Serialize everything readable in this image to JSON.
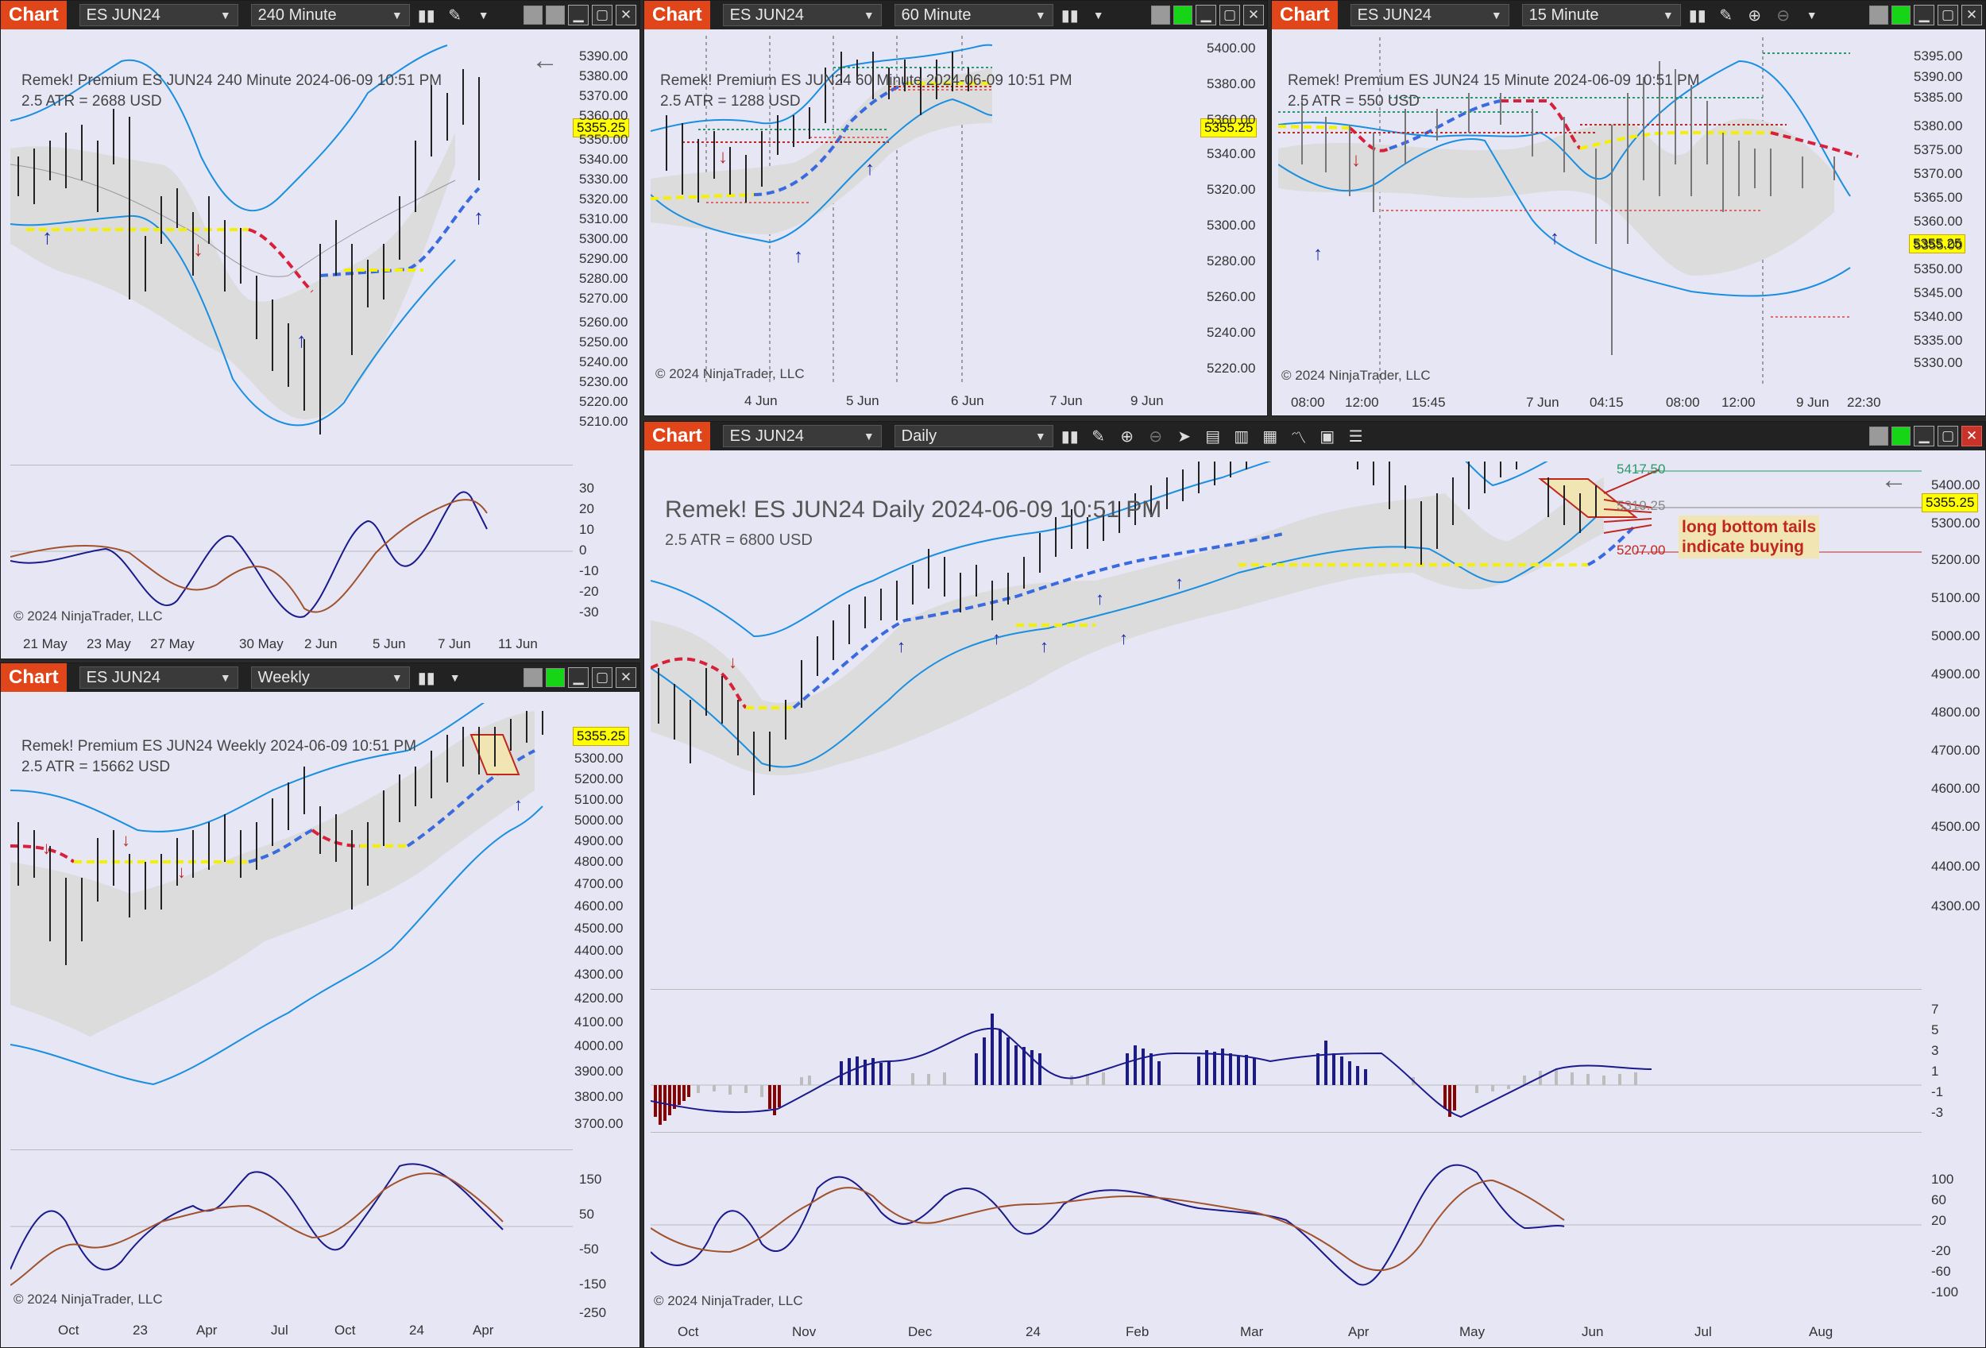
{
  "common": {
    "chart_tab": "Chart",
    "symbol": "ES JUN24",
    "copyright": "© 2024 NinjaTrader, LLC",
    "price_tag": "5355.25",
    "colors": {
      "tab": "#e0461a",
      "band": "#1a8fe0",
      "red_dash": "#d8203a",
      "blue_dash": "#3a6ae0",
      "yellow": "#f4f000",
      "price_tag": "#ffff00"
    }
  },
  "win240": {
    "interval": "240 Minute",
    "title": "Remek!  Premium  ES JUN24  240 Minute  2024-06-09 10:51 PM",
    "atr": "2.5 ATR = 2688 USD",
    "y_ticks": [
      "5390.00",
      "5380.00",
      "5370.00",
      "5360.00",
      "5350.00",
      "5340.00",
      "5330.00",
      "5320.00",
      "5310.00",
      "5300.00",
      "5290.00",
      "5280.00",
      "5270.00",
      "5260.00",
      "5250.00",
      "5240.00",
      "5230.00",
      "5220.00",
      "5210.00"
    ],
    "osc_ticks": [
      "30",
      "20",
      "10",
      "0",
      "-10",
      "-20",
      "-30"
    ],
    "x_ticks": [
      "21 May",
      "23 May",
      "27 May",
      "30 May",
      "2 Jun",
      "5 Jun",
      "7 Jun",
      "11 Jun"
    ]
  },
  "win60": {
    "interval": "60 Minute",
    "title": "Remek!  Premium  ES JUN24  60 Minute  2024-06-09 10:51 PM",
    "atr": "2.5 ATR = 1288 USD",
    "y_ticks": [
      "5400.00",
      "5380.00",
      "5360.00",
      "5340.00",
      "5320.00",
      "5300.00",
      "5280.00",
      "5260.00",
      "5240.00",
      "5220.00"
    ],
    "x_ticks": [
      "4 Jun",
      "5 Jun",
      "6 Jun",
      "7 Jun",
      "9 Jun"
    ]
  },
  "win15": {
    "interval": "15 Minute",
    "title": "Remek!  Premium  ES JUN24  15 Minute  2024-06-09 10:51 PM",
    "atr": "2.5 ATR = 550 USD",
    "y_ticks": [
      "5395.00",
      "5390.00",
      "5385.00",
      "5380.00",
      "5375.00",
      "5370.00",
      "5365.00",
      "5360.00",
      "5355.00",
      "5350.00",
      "5345.00",
      "5340.00",
      "5335.00",
      "5330.00"
    ],
    "x_ticks": [
      "08:00",
      "12:00",
      "15:45",
      "7 Jun",
      "04:15",
      "08:00",
      "12:00",
      "9 Jun",
      "22:30"
    ]
  },
  "winWeekly": {
    "interval": "Weekly",
    "title": "Remek!  Premium  ES JUN24  Weekly  2024-06-09 10:51 PM",
    "atr": "2.5 ATR = 15662 USD",
    "y_ticks": [
      "5400.00",
      "5300.00",
      "5200.00",
      "5100.00",
      "5000.00",
      "4900.00",
      "4800.00",
      "4700.00",
      "4600.00",
      "4500.00",
      "4400.00",
      "4300.00",
      "4200.00",
      "4100.00",
      "4000.00",
      "3900.00",
      "3800.00",
      "3700.00"
    ],
    "osc_ticks": [
      "150",
      "50",
      "-50",
      "-150",
      "-250"
    ],
    "x_ticks": [
      "Oct",
      "23",
      "Apr",
      "Jul",
      "Oct",
      "24",
      "Apr"
    ]
  },
  "winDaily": {
    "interval": "Daily",
    "title": "Remek!  ES JUN24  Daily  2024-06-09 10:51 PM",
    "atr": "2.5 ATR = 6800 USD",
    "y_ticks": [
      "5400.00",
      "5300.00",
      "5200.00",
      "5100.00",
      "5000.00",
      "4900.00",
      "4800.00",
      "4700.00",
      "4600.00",
      "4500.00",
      "4400.00",
      "4300.00"
    ],
    "hist_ticks": [
      "7",
      "5",
      "3",
      "1",
      "-1",
      "-3"
    ],
    "osc_ticks": [
      "100",
      "60",
      "20",
      "-20",
      "-60",
      "-100"
    ],
    "x_ticks": [
      "Oct",
      "Nov",
      "Dec",
      "24",
      "Feb",
      "Mar",
      "Apr",
      "May",
      "Jun",
      "Jul",
      "Aug"
    ],
    "level_top": "5417.50",
    "level_mid": "5319.25",
    "level_low": "5207.00",
    "annotation_line1": "long bottom tails",
    "annotation_line2": "indicate buying"
  }
}
